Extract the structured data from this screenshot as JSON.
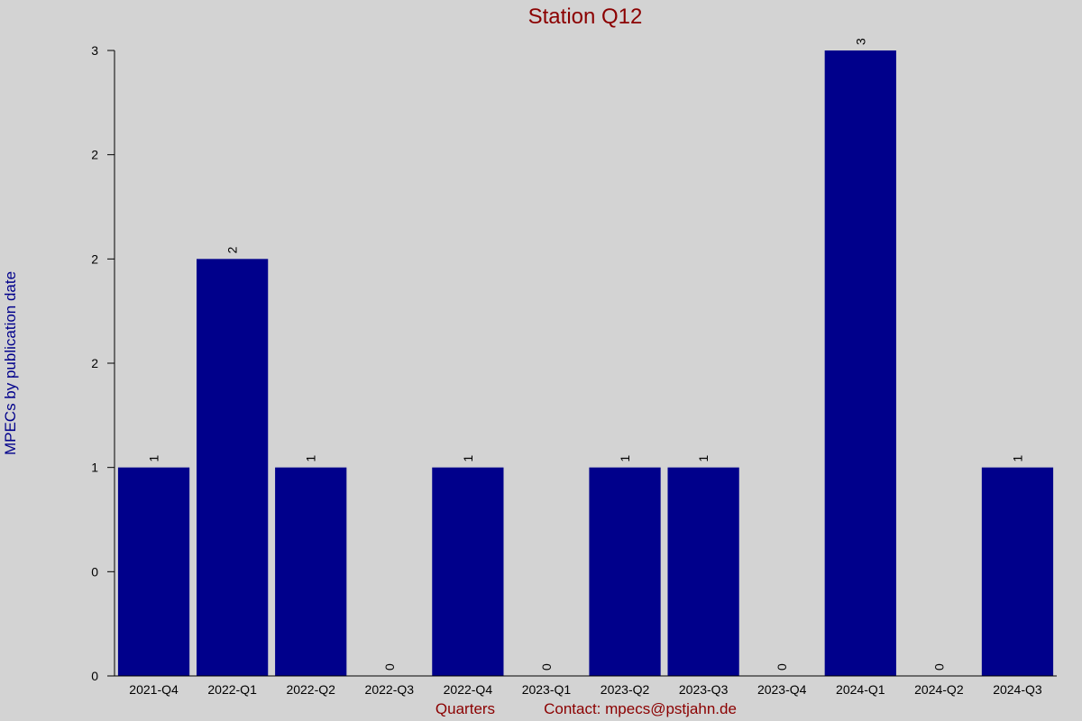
{
  "chart_data": {
    "type": "bar",
    "title": "Station Q12",
    "x_label": "Quarters",
    "contact": "Contact: mpecs@pstjahn.de",
    "y_label": "MPECs by publication date",
    "categories": [
      "2021-Q4",
      "2022-Q1",
      "2022-Q2",
      "2022-Q3",
      "2022-Q4",
      "2023-Q1",
      "2023-Q2",
      "2023-Q3",
      "2023-Q4",
      "2024-Q1",
      "2024-Q2",
      "2024-Q3"
    ],
    "values": [
      1,
      2,
      1,
      0,
      1,
      0,
      1,
      1,
      0,
      3,
      0,
      1
    ],
    "color": "#00008b",
    "ylim": [
      0,
      3
    ],
    "yticks": [
      0,
      {
        "value": 0.5,
        "label": "0"
      },
      1,
      {
        "value": 1.5,
        "label": "2"
      },
      2,
      {
        "value": 2.5,
        "label": "2"
      },
      3
    ]
  }
}
